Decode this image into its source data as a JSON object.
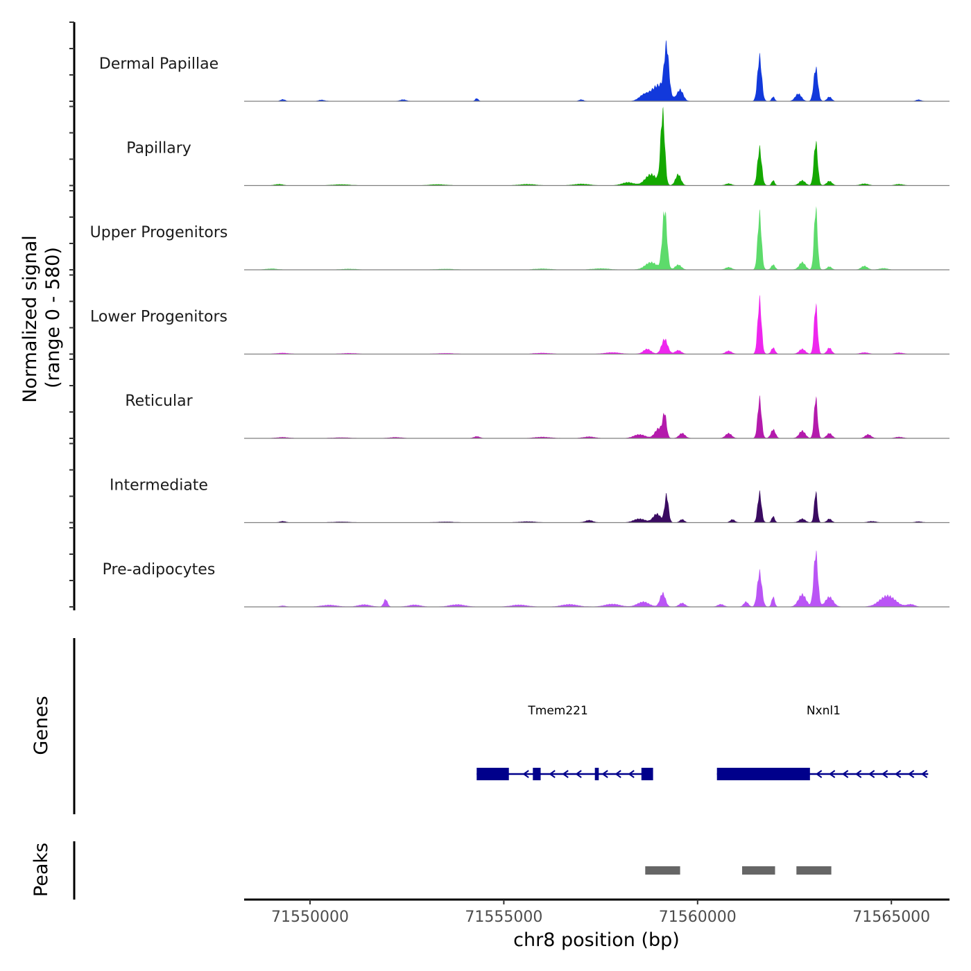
{
  "chart_data": {
    "type": "area",
    "title": "",
    "ylabel_line1": "Normalized signal",
    "ylabel_line2": "(range 0 - 580)",
    "y_range": [
      0,
      580
    ],
    "xlabel": "chr8 position (bp)",
    "xlim": [
      71548300,
      71566500
    ],
    "x_ticks": [
      71550000,
      71555000,
      71560000,
      71565000
    ],
    "x_tick_labels": [
      "71550000",
      "71555000",
      "71560000",
      "71565000"
    ],
    "genes_track_label": "Genes",
    "peaks_track_label": "Peaks",
    "series": [
      {
        "name": "Dermal Papillae",
        "color": "#1239DB",
        "peaks": [
          [
            71549300,
            14,
            60
          ],
          [
            71550300,
            10,
            80
          ],
          [
            71552400,
            12,
            80
          ],
          [
            71554300,
            22,
            40
          ],
          [
            71557000,
            12,
            60
          ],
          [
            71558600,
            40,
            120
          ],
          [
            71559000,
            130,
            200
          ],
          [
            71559200,
            380,
            60
          ],
          [
            71559550,
            90,
            80
          ],
          [
            71561600,
            360,
            55
          ],
          [
            71561950,
            35,
            40
          ],
          [
            71562600,
            60,
            80
          ],
          [
            71563050,
            270,
            55
          ],
          [
            71563400,
            35,
            60
          ],
          [
            71565700,
            12,
            60
          ]
        ]
      },
      {
        "name": "Papillary",
        "color": "#14A800",
        "peaks": [
          [
            71549200,
            10,
            100
          ],
          [
            71550800,
            8,
            200
          ],
          [
            71553300,
            8,
            200
          ],
          [
            71555600,
            10,
            200
          ],
          [
            71557000,
            12,
            200
          ],
          [
            71558200,
            25,
            150
          ],
          [
            71558800,
            90,
            150
          ],
          [
            71559100,
            580,
            55
          ],
          [
            71559500,
            90,
            70
          ],
          [
            71560800,
            15,
            80
          ],
          [
            71561600,
            300,
            55
          ],
          [
            71561950,
            40,
            40
          ],
          [
            71562700,
            40,
            80
          ],
          [
            71563050,
            350,
            50
          ],
          [
            71563400,
            35,
            70
          ],
          [
            71564300,
            14,
            100
          ],
          [
            71565200,
            10,
            100
          ]
        ]
      },
      {
        "name": "Upper Progenitors",
        "color": "#5DDB6B",
        "peaks": [
          [
            71549000,
            8,
            150
          ],
          [
            71551000,
            6,
            200
          ],
          [
            71553500,
            6,
            200
          ],
          [
            71556000,
            8,
            200
          ],
          [
            71557500,
            10,
            200
          ],
          [
            71558800,
            60,
            150
          ],
          [
            71559150,
            480,
            60
          ],
          [
            71559500,
            40,
            80
          ],
          [
            71560800,
            20,
            80
          ],
          [
            71561600,
            450,
            50
          ],
          [
            71561950,
            40,
            50
          ],
          [
            71562700,
            60,
            80
          ],
          [
            71563050,
            500,
            45
          ],
          [
            71563400,
            25,
            60
          ],
          [
            71564300,
            30,
            80
          ],
          [
            71564800,
            12,
            100
          ]
        ]
      },
      {
        "name": "Lower Progenitors",
        "color": "#EE26EE",
        "peaks": [
          [
            71549300,
            8,
            150
          ],
          [
            71551000,
            6,
            200
          ],
          [
            71553500,
            6,
            200
          ],
          [
            71556000,
            8,
            200
          ],
          [
            71557800,
            12,
            200
          ],
          [
            71558700,
            40,
            100
          ],
          [
            71559150,
            120,
            80
          ],
          [
            71559500,
            30,
            80
          ],
          [
            71560800,
            25,
            80
          ],
          [
            71561600,
            440,
            50
          ],
          [
            71561950,
            50,
            50
          ],
          [
            71562700,
            40,
            80
          ],
          [
            71563050,
            400,
            45
          ],
          [
            71563400,
            50,
            60
          ],
          [
            71564300,
            12,
            100
          ],
          [
            71565200,
            10,
            100
          ]
        ]
      },
      {
        "name": "Reticular",
        "color": "#B41AAC",
        "peaks": [
          [
            71549300,
            8,
            150
          ],
          [
            71550800,
            6,
            200
          ],
          [
            71552200,
            8,
            150
          ],
          [
            71554300,
            14,
            80
          ],
          [
            71556000,
            10,
            200
          ],
          [
            71557200,
            12,
            150
          ],
          [
            71558500,
            30,
            150
          ],
          [
            71559000,
            80,
            100
          ],
          [
            71559150,
            180,
            50
          ],
          [
            71559600,
            40,
            80
          ],
          [
            71560800,
            40,
            80
          ],
          [
            71561600,
            320,
            50
          ],
          [
            71561950,
            70,
            60
          ],
          [
            71562700,
            60,
            80
          ],
          [
            71563050,
            330,
            45
          ],
          [
            71563400,
            40,
            70
          ],
          [
            71564400,
            30,
            80
          ],
          [
            71565200,
            10,
            100
          ]
        ]
      },
      {
        "name": "Intermediate",
        "color": "#3A0B61",
        "peaks": [
          [
            71549300,
            10,
            80
          ],
          [
            71550800,
            6,
            200
          ],
          [
            71553500,
            6,
            200
          ],
          [
            71555600,
            8,
            200
          ],
          [
            71557200,
            18,
            100
          ],
          [
            71558500,
            30,
            150
          ],
          [
            71558950,
            70,
            100
          ],
          [
            71559200,
            220,
            50
          ],
          [
            71559600,
            25,
            60
          ],
          [
            71560900,
            25,
            60
          ],
          [
            71561600,
            240,
            50
          ],
          [
            71561950,
            50,
            40
          ],
          [
            71562700,
            30,
            80
          ],
          [
            71563050,
            250,
            40
          ],
          [
            71563400,
            30,
            60
          ],
          [
            71564500,
            10,
            100
          ],
          [
            71565700,
            8,
            80
          ]
        ]
      },
      {
        "name": "Pre-adipocytes",
        "color": "#BA55F5",
        "peaks": [
          [
            71549300,
            8,
            80
          ],
          [
            71550500,
            14,
            200
          ],
          [
            71551400,
            18,
            150
          ],
          [
            71551950,
            60,
            50
          ],
          [
            71552700,
            16,
            150
          ],
          [
            71553800,
            18,
            200
          ],
          [
            71555400,
            16,
            200
          ],
          [
            71556700,
            20,
            200
          ],
          [
            71557800,
            22,
            200
          ],
          [
            71558600,
            40,
            150
          ],
          [
            71559100,
            110,
            70
          ],
          [
            71559600,
            30,
            80
          ],
          [
            71560600,
            20,
            80
          ],
          [
            71561250,
            40,
            60
          ],
          [
            71561600,
            280,
            60
          ],
          [
            71561950,
            80,
            40
          ],
          [
            71562700,
            100,
            100
          ],
          [
            71563050,
            440,
            55
          ],
          [
            71563400,
            80,
            100
          ],
          [
            71564900,
            90,
            200
          ],
          [
            71565500,
            20,
            100
          ]
        ]
      }
    ],
    "genes": [
      {
        "name": "Tmem221",
        "label_x": 71556400,
        "start": 71554300,
        "end": 71558850,
        "strand": "-",
        "exons": [
          [
            71554300,
            71555130
          ],
          [
            71555750,
            71555950
          ],
          [
            71557350,
            71557450
          ],
          [
            71558550,
            71558850
          ]
        ]
      },
      {
        "name": "Nxnl1",
        "label_x": 71563250,
        "start": 71560500,
        "end": 71565950,
        "strand": "-",
        "exons": [
          [
            71560500,
            71562900
          ]
        ]
      }
    ],
    "peaks_regions": [
      [
        71558650,
        71559550
      ],
      [
        71561150,
        71562000
      ],
      [
        71562550,
        71563450
      ]
    ],
    "gene_color": "#00008B",
    "peak_color": "#666666"
  }
}
